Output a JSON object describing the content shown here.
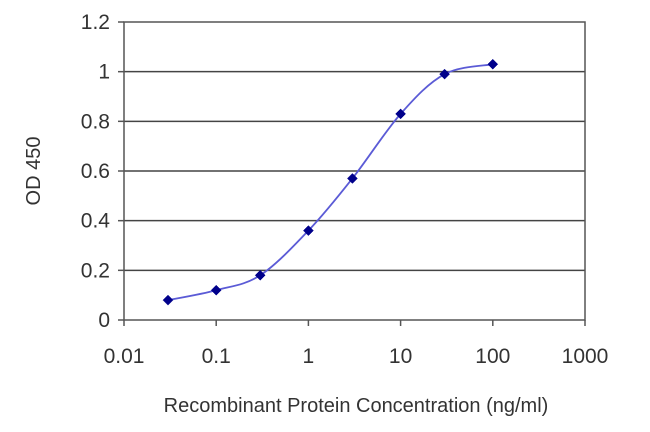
{
  "chart_data": {
    "type": "line",
    "xscale": "log",
    "xlim": [
      0.01,
      1000
    ],
    "ylim": [
      0,
      1.2
    ],
    "xticks": [
      0.01,
      0.1,
      1,
      10,
      100,
      1000
    ],
    "xtick_labels": [
      "0.01",
      "0.1",
      "1",
      "10",
      "100",
      "1000"
    ],
    "yticks": [
      0,
      0.2,
      0.4,
      0.6,
      0.8,
      1,
      1.2
    ],
    "ytick_labels": [
      "0",
      "0.2",
      "0.4",
      "0.6",
      "0.8",
      "1",
      "1.2"
    ],
    "xlabel": "Recombinant Protein Concentration (ng/ml)",
    "ylabel": "OD 450",
    "grid": "horizontal",
    "legend": "none",
    "series": [
      {
        "x": [
          0.03,
          0.1,
          0.3,
          1,
          3,
          10,
          30,
          100
        ],
        "y": [
          0.08,
          0.12,
          0.18,
          0.36,
          0.57,
          0.83,
          0.99,
          1.03
        ],
        "color": "#00008b",
        "line_color": "#5b5bd6"
      }
    ]
  }
}
